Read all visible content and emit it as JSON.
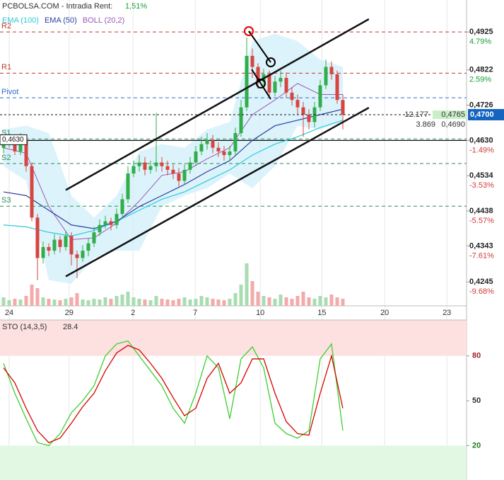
{
  "header": {
    "site": "PCBOLSA.COM - Intradia",
    "rent_label": "Rent:",
    "rent": "1,51%"
  },
  "chart_data": [
    {
      "type": "candlestick",
      "open": [
        0.461,
        0.462,
        0.4635,
        0.46,
        0.463,
        0.456,
        0.442,
        0.431,
        0.434,
        0.433,
        0.436,
        0.434,
        0.437,
        0.432,
        0.431,
        0.433,
        0.435,
        0.438,
        0.44,
        0.441,
        0.44,
        0.443,
        0.447,
        0.454,
        0.456,
        0.457,
        0.455,
        0.456,
        0.457,
        0.456,
        0.455,
        0.454,
        0.452,
        0.455,
        0.457,
        0.46,
        0.462,
        0.463,
        0.461,
        0.46,
        0.459,
        0.46,
        0.465,
        0.472,
        0.486,
        0.483,
        0.479,
        0.481,
        0.476,
        0.479,
        0.48,
        0.476,
        0.474,
        0.472,
        0.47,
        0.468,
        0.472,
        0.478,
        0.483,
        0.481,
        0.474
      ],
      "high": [
        0.464,
        0.465,
        0.4645,
        0.465,
        0.464,
        0.457,
        0.443,
        0.4355,
        0.435,
        0.4375,
        0.437,
        0.4385,
        0.438,
        0.433,
        0.4345,
        0.4365,
        0.4395,
        0.4415,
        0.4425,
        0.442,
        0.4445,
        0.4485,
        0.456,
        0.4575,
        0.459,
        0.4585,
        0.4575,
        0.4705,
        0.4585,
        0.4575,
        0.4565,
        0.4555,
        0.4565,
        0.4585,
        0.4615,
        0.464,
        0.465,
        0.4645,
        0.4625,
        0.4615,
        0.4615,
        0.4665,
        0.474,
        0.491,
        0.488,
        0.484,
        0.4825,
        0.482,
        0.4805,
        0.482,
        0.4815,
        0.4775,
        0.4755,
        0.4735,
        0.4715,
        0.4735,
        0.4795,
        0.485,
        0.4845,
        0.482,
        0.4755
      ],
      "low": [
        0.4595,
        0.461,
        0.459,
        0.459,
        0.4545,
        0.441,
        0.425,
        0.4295,
        0.4315,
        0.432,
        0.4325,
        0.433,
        0.429,
        0.4255,
        0.43,
        0.4315,
        0.434,
        0.437,
        0.439,
        0.4385,
        0.439,
        0.442,
        0.446,
        0.453,
        0.4545,
        0.4535,
        0.454,
        0.4545,
        0.4545,
        0.4535,
        0.4525,
        0.4505,
        0.451,
        0.454,
        0.456,
        0.459,
        0.4605,
        0.4595,
        0.4585,
        0.4575,
        0.4575,
        0.459,
        0.464,
        0.471,
        0.48,
        0.477,
        0.478,
        0.4745,
        0.475,
        0.4775,
        0.4745,
        0.4725,
        0.47,
        0.464,
        0.466,
        0.4665,
        0.471,
        0.477,
        0.4795,
        0.473,
        0.466
      ],
      "close": [
        0.462,
        0.4635,
        0.46,
        0.463,
        0.456,
        0.442,
        0.431,
        0.434,
        0.433,
        0.436,
        0.434,
        0.437,
        0.432,
        0.431,
        0.433,
        0.435,
        0.438,
        0.44,
        0.441,
        0.44,
        0.443,
        0.447,
        0.454,
        0.456,
        0.457,
        0.455,
        0.456,
        0.457,
        0.456,
        0.455,
        0.454,
        0.452,
        0.455,
        0.457,
        0.46,
        0.462,
        0.463,
        0.461,
        0.46,
        0.459,
        0.46,
        0.465,
        0.472,
        0.486,
        0.483,
        0.479,
        0.481,
        0.476,
        0.479,
        0.48,
        0.476,
        0.474,
        0.472,
        0.47,
        0.468,
        0.472,
        0.478,
        0.483,
        0.481,
        0.474,
        0.47
      ],
      "volume": [
        12,
        8,
        10,
        9,
        14,
        30,
        25,
        12,
        10,
        9,
        8,
        10,
        12,
        18,
        9,
        8,
        10,
        9,
        12,
        10,
        14,
        16,
        20,
        12,
        10,
        9,
        8,
        14,
        10,
        9,
        8,
        10,
        12,
        9,
        10,
        14,
        12,
        10,
        9,
        8,
        10,
        18,
        30,
        60,
        35,
        20,
        14,
        12,
        10,
        16,
        12,
        10,
        14,
        20,
        12,
        10,
        14,
        12,
        16,
        12,
        10
      ],
      "up_color": "#2fae4a",
      "down_color": "#d64541",
      "volume_up_color": "#a9dcb0",
      "volume_down_color": "#f3aaaa",
      "series": [
        {
          "name": "EMA (100)",
          "color": "#2ccbd8",
          "x": [
            0,
            4,
            8,
            12,
            16,
            20,
            24,
            28,
            32,
            36,
            40,
            44,
            48,
            52,
            56,
            60
          ],
          "values": [
            0.44,
            0.4395,
            0.438,
            0.437,
            0.4385,
            0.441,
            0.444,
            0.447,
            0.449,
            0.452,
            0.455,
            0.459,
            0.462,
            0.464,
            0.4665,
            0.4685
          ]
        },
        {
          "name": "EMA (50)",
          "color": "#2b3f9e",
          "x": [
            0,
            4,
            8,
            12,
            16,
            20,
            24,
            28,
            32,
            36,
            40,
            44,
            48,
            52,
            56,
            60
          ],
          "values": [
            0.449,
            0.448,
            0.444,
            0.44,
            0.439,
            0.441,
            0.445,
            0.448,
            0.451,
            0.4545,
            0.4575,
            0.463,
            0.467,
            0.4685,
            0.47,
            0.4715
          ]
        }
      ],
      "boll": {
        "name": "BOLL (20,2)",
        "color": "#9b59b6",
        "band_color": "#cdeefa",
        "x": [
          0,
          4,
          8,
          12,
          16,
          20,
          24,
          28,
          32,
          36,
          40,
          44,
          48,
          52,
          56,
          60
        ],
        "upper": [
          0.466,
          0.467,
          0.465,
          0.448,
          0.442,
          0.448,
          0.46,
          0.462,
          0.461,
          0.466,
          0.468,
          0.49,
          0.492,
          0.49,
          0.485,
          0.483
        ],
        "mid": [
          0.461,
          0.4595,
          0.445,
          0.436,
          0.4365,
          0.4405,
          0.4465,
          0.4535,
          0.4545,
          0.458,
          0.461,
          0.47,
          0.474,
          0.4785,
          0.4755,
          0.4755
        ],
        "lower": [
          0.456,
          0.452,
          0.425,
          0.424,
          0.431,
          0.433,
          0.433,
          0.445,
          0.448,
          0.45,
          0.454,
          0.45,
          0.456,
          0.467,
          0.466,
          0.468
        ]
      },
      "levels": [
        {
          "label": "R2",
          "value": 0.4925,
          "color": "#c0392b"
        },
        {
          "label": "R1",
          "value": 0.4813,
          "color": "#c0392b"
        },
        {
          "label": "Pivot",
          "value": 0.4746,
          "color": "#2e6fc7"
        },
        {
          "label": "S1",
          "value": 0.4634,
          "color": "#2e8b57"
        },
        {
          "label": "S2",
          "value": 0.4567,
          "color": "#2e8b57"
        },
        {
          "label": "S3",
          "value": 0.4451,
          "color": "#2e8b57"
        }
      ],
      "reference_line": {
        "value": 0.463,
        "label": "0,4630"
      },
      "last_price": {
        "value": 0.47,
        "label": "0,4700",
        "color": "#1565c0"
      },
      "book": [
        {
          "size": "12.177",
          "price": "0,4765"
        },
        {
          "size": "3.869",
          "price": "0,4690"
        }
      ],
      "trendlines": [
        {
          "x": [
            11,
            64.6
          ],
          "y": [
            0.4495,
            0.496
          ]
        },
        {
          "x": [
            11,
            64.6
          ],
          "y": [
            0.426,
            0.4719
          ]
        }
      ],
      "xlim": [
        -0.625,
        81.875
      ],
      "ylim": [
        0.418,
        0.5012
      ],
      "xticks": [
        {
          "value": 1,
          "label": "24"
        },
        {
          "value": 11.6,
          "label": "29"
        },
        {
          "value": 22.9,
          "label": "2"
        },
        {
          "value": 33.9,
          "label": "7"
        },
        {
          "value": 45.4,
          "label": "10"
        },
        {
          "value": 56.3,
          "label": "15"
        },
        {
          "value": 67.4,
          "label": "20"
        },
        {
          "value": 78.4,
          "label": "23"
        }
      ],
      "yticks": [
        {
          "value": 0.4925,
          "label": "0,4925"
        },
        {
          "value": 0.4822,
          "label": "0,4822"
        },
        {
          "value": 0.4726,
          "label": "0,4726"
        },
        {
          "value": 0.463,
          "label": "0,4630"
        },
        {
          "value": 0.4534,
          "label": "0,4534"
        },
        {
          "value": 0.4438,
          "label": "0,4438"
        },
        {
          "value": 0.4343,
          "label": "0,4343"
        },
        {
          "value": 0.4245,
          "label": "0,4245"
        }
      ],
      "ytick_changes": [
        4.79,
        2.59,
        null,
        -1.49,
        -3.53,
        -5.57,
        -7.61,
        -9.68
      ],
      "ytick_change_labels": [
        "4.79%",
        "2.59%",
        null,
        "-1.49%",
        "-3.53%",
        "-5.57%",
        "-7.61%",
        "-9.68%"
      ],
      "grid": true
    },
    {
      "type": "line",
      "title": "STO (14,3,5)",
      "last": 28.4,
      "x": [
        0,
        2,
        4,
        6,
        8,
        10,
        12,
        14,
        16,
        18,
        20,
        22,
        24,
        26,
        28,
        30,
        32,
        34,
        36,
        38,
        40,
        42,
        44,
        46,
        48,
        50,
        52,
        54,
        56,
        58,
        60
      ],
      "series": [
        {
          "name": "K",
          "color": "#3ccf2e",
          "values": [
            75,
            55,
            38,
            22,
            20,
            28,
            42,
            50,
            60,
            80,
            88,
            90,
            80,
            70,
            60,
            45,
            35,
            55,
            80,
            72,
            38,
            78,
            86,
            72,
            35,
            28,
            25,
            30,
            78,
            88,
            30
          ]
        },
        {
          "name": "D",
          "color": "#d90000",
          "values": [
            72,
            62,
            45,
            30,
            22,
            25,
            35,
            46,
            55,
            70,
            82,
            87,
            84,
            75,
            65,
            52,
            40,
            45,
            65,
            75,
            55,
            62,
            78,
            78,
            55,
            36,
            28,
            27,
            55,
            80,
            45
          ]
        }
      ],
      "overbought": 80,
      "oversold": 20,
      "overbought_color": "#fde0e0",
      "oversold_color": "#e2f8e2",
      "xlim": [
        -0.625,
        81.875
      ],
      "ylim": [
        -3,
        104
      ],
      "yticks": [
        80,
        50,
        20
      ]
    }
  ]
}
